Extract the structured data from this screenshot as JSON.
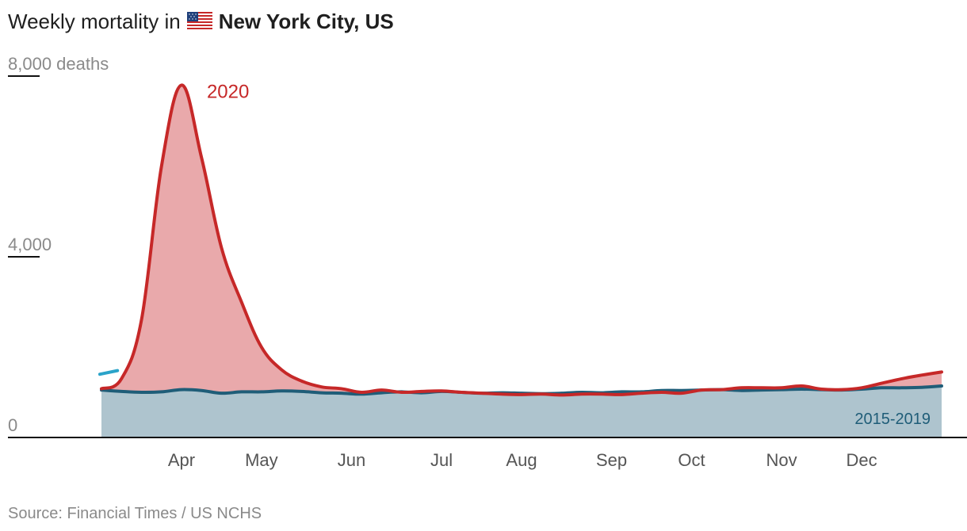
{
  "chart": {
    "title_prefix": "Weekly mortality in",
    "title_place": "New York City, US",
    "flag_icon": "us-flag-icon",
    "source": "Source: Financial Times / US NCHS",
    "colors": {
      "series2020": "#c62828",
      "series2020Fill": "#e9a9ab",
      "baseline": "#1f5d78",
      "baselineFill": "#aec4ce",
      "baselineEarly": "#2aa3c9",
      "axis": "#111111",
      "label": "#8a8a8a"
    }
  },
  "chart_data": {
    "type": "area",
    "title": "Weekly mortality in New York City, US",
    "xlabel": "",
    "ylabel": "deaths",
    "ylim": [
      0,
      8000
    ],
    "yticks": [
      0,
      4000,
      8000
    ],
    "ytick_labels": [
      "0",
      "4,000",
      "8,000 deaths"
    ],
    "x_months": [
      {
        "label": "Apr",
        "week": 14
      },
      {
        "label": "May",
        "week": 18
      },
      {
        "label": "Jun",
        "week": 22.5
      },
      {
        "label": "Jul",
        "week": 27
      },
      {
        "label": "Aug",
        "week": 31
      },
      {
        "label": "Sep",
        "week": 35.5
      },
      {
        "label": "Oct",
        "week": 39.5
      },
      {
        "label": "Nov",
        "week": 44
      },
      {
        "label": "Dec",
        "week": 48
      }
    ],
    "series": [
      {
        "name": "2020",
        "weeks": [
          10,
          11,
          12,
          13,
          14,
          15,
          16,
          17,
          18,
          19,
          20,
          21,
          22,
          23,
          24,
          25,
          26,
          27,
          28,
          29,
          30,
          31,
          32,
          33,
          34,
          35,
          36,
          37,
          38,
          39,
          40,
          41,
          42,
          43,
          44,
          45,
          46,
          47,
          48,
          49,
          50,
          51,
          52
        ],
        "values": [
          1080,
          1300,
          2600,
          6000,
          7800,
          6200,
          4200,
          3000,
          2000,
          1500,
          1250,
          1120,
          1080,
          1000,
          1050,
          1000,
          1020,
          1030,
          1000,
          980,
          960,
          950,
          960,
          940,
          960,
          960,
          950,
          980,
          1000,
          980,
          1050,
          1060,
          1100,
          1100,
          1100,
          1140,
          1070,
          1060,
          1100,
          1200,
          1300,
          1380,
          1450
        ]
      },
      {
        "name": "2015-2019",
        "weeks": [
          10,
          11,
          12,
          13,
          14,
          15,
          16,
          17,
          18,
          19,
          20,
          21,
          22,
          23,
          24,
          25,
          26,
          27,
          28,
          29,
          30,
          31,
          32,
          33,
          34,
          35,
          36,
          37,
          38,
          39,
          40,
          41,
          42,
          43,
          44,
          45,
          46,
          47,
          48,
          49,
          50,
          51,
          52
        ],
        "values": [
          1050,
          1020,
          1000,
          1010,
          1060,
          1040,
          980,
          1010,
          1010,
          1030,
          1020,
          990,
          980,
          960,
          990,
          1010,
          990,
          1020,
          1000,
          980,
          990,
          980,
          970,
          980,
          1000,
          990,
          1010,
          1010,
          1040,
          1040,
          1050,
          1060,
          1040,
          1050,
          1060,
          1070,
          1060,
          1050,
          1070,
          1100,
          1100,
          1110,
          1140
        ]
      }
    ],
    "early_baseline_values": [
      1400,
      1480
    ],
    "annotations": [
      {
        "text": "2020",
        "series": "2020"
      },
      {
        "text": "2015-2019",
        "series": "2015-2019"
      }
    ]
  }
}
